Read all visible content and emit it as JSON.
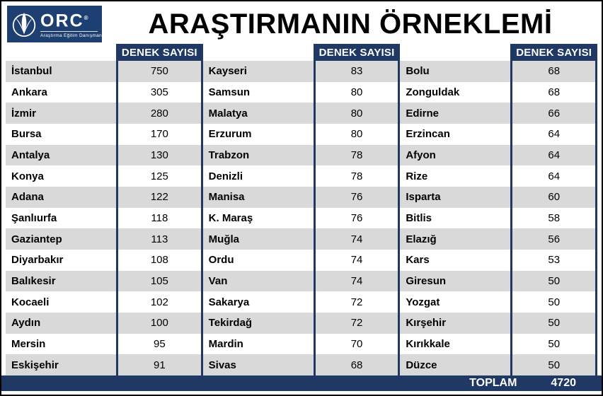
{
  "logo": {
    "name": "ORC",
    "registered": "®",
    "subtitle": "Araştırma Eğitim Danışmanlık"
  },
  "title": "ARAŞTIRMANIN ÖRNEKLEMİ",
  "colors": {
    "navy": "#1F3864",
    "row_alt": "#D9D9D9",
    "logo_blue": "#1D3F72"
  },
  "chart_data": {
    "type": "table",
    "title": "ARAŞTIRMANIN ÖRNEKLEMİ",
    "value_header": "DENEK SAYISI",
    "city_header": "",
    "groups": [
      {
        "rows": [
          {
            "city": "İstanbul",
            "value": 750
          },
          {
            "city": "Ankara",
            "value": 305
          },
          {
            "city": "İzmir",
            "value": 280
          },
          {
            "city": "Bursa",
            "value": 170
          },
          {
            "city": "Antalya",
            "value": 130
          },
          {
            "city": "Konya",
            "value": 125
          },
          {
            "city": "Adana",
            "value": 122
          },
          {
            "city": "Şanlıurfa",
            "value": 118
          },
          {
            "city": "Gaziantep",
            "value": 113
          },
          {
            "city": "Diyarbakır",
            "value": 108
          },
          {
            "city": "Balıkesir",
            "value": 105
          },
          {
            "city": "Kocaeli",
            "value": 102
          },
          {
            "city": "Aydın",
            "value": 100
          },
          {
            "city": "Mersin",
            "value": 95
          },
          {
            "city": "Eskişehir",
            "value": 91
          }
        ]
      },
      {
        "rows": [
          {
            "city": "Kayseri",
            "value": 83
          },
          {
            "city": "Samsun",
            "value": 80
          },
          {
            "city": "Malatya",
            "value": 80
          },
          {
            "city": "Erzurum",
            "value": 80
          },
          {
            "city": "Trabzon",
            "value": 78
          },
          {
            "city": "Denizli",
            "value": 78
          },
          {
            "city": "Manisa",
            "value": 76
          },
          {
            "city": "K. Maraş",
            "value": 76
          },
          {
            "city": "Muğla",
            "value": 74
          },
          {
            "city": "Ordu",
            "value": 74
          },
          {
            "city": "Van",
            "value": 74
          },
          {
            "city": "Sakarya",
            "value": 72
          },
          {
            "city": "Tekirdağ",
            "value": 72
          },
          {
            "city": "Mardin",
            "value": 70
          },
          {
            "city": "Sivas",
            "value": 68
          }
        ]
      },
      {
        "rows": [
          {
            "city": "Bolu",
            "value": 68
          },
          {
            "city": "Zonguldak",
            "value": 68
          },
          {
            "city": "Edirne",
            "value": 66
          },
          {
            "city": "Erzincan",
            "value": 64
          },
          {
            "city": "Afyon",
            "value": 64
          },
          {
            "city": "Rize",
            "value": 64
          },
          {
            "city": "Isparta",
            "value": 60
          },
          {
            "city": "Bitlis",
            "value": 58
          },
          {
            "city": "Elazığ",
            "value": 56
          },
          {
            "city": "Kars",
            "value": 53
          },
          {
            "city": "Giresun",
            "value": 50
          },
          {
            "city": "Yozgat",
            "value": 50
          },
          {
            "city": "Kırşehir",
            "value": 50
          },
          {
            "city": "Kırıkkale",
            "value": 50
          },
          {
            "city": "Düzce",
            "value": 50
          }
        ]
      }
    ],
    "total_label": "TOPLAM",
    "total": 4720
  }
}
